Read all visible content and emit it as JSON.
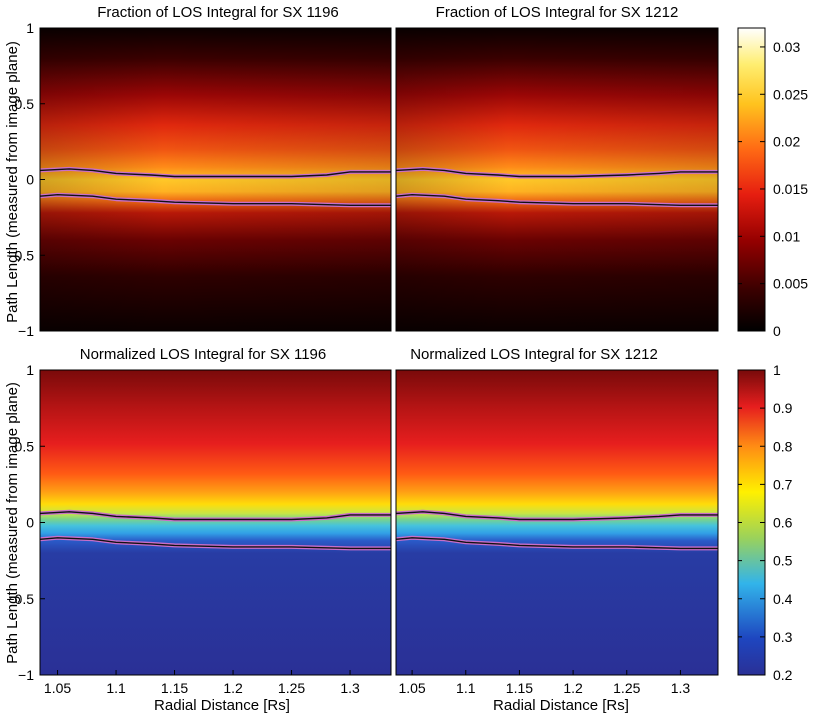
{
  "chart_data": [
    {
      "type": "heatmap",
      "title": "Fraction of LOS Integral for SX 1196",
      "xlabel": "",
      "ylabel": "Path Length (measured from image plane)",
      "xlim": [
        1.035,
        1.335
      ],
      "ylim": [
        -1,
        1
      ],
      "x_ticks": [],
      "y_ticks": [
        "1",
        "0.5",
        "0",
        "−0.5",
        "−1"
      ],
      "colormap": "hot",
      "upper_contour": [
        [
          1.035,
          0.06
        ],
        [
          1.06,
          0.07
        ],
        [
          1.08,
          0.06
        ],
        [
          1.1,
          0.04
        ],
        [
          1.13,
          0.03
        ],
        [
          1.15,
          0.02
        ],
        [
          1.2,
          0.02
        ],
        [
          1.25,
          0.02
        ],
        [
          1.28,
          0.03
        ],
        [
          1.3,
          0.05
        ],
        [
          1.335,
          0.05
        ]
      ],
      "lower_contour": [
        [
          1.035,
          -0.11
        ],
        [
          1.05,
          -0.1
        ],
        [
          1.08,
          -0.11
        ],
        [
          1.1,
          -0.13
        ],
        [
          1.13,
          -0.14
        ],
        [
          1.15,
          -0.15
        ],
        [
          1.2,
          -0.16
        ],
        [
          1.25,
          -0.16
        ],
        [
          1.3,
          -0.17
        ],
        [
          1.335,
          -0.17
        ]
      ]
    },
    {
      "type": "heatmap",
      "title": "Fraction of LOS Integral for SX 1212",
      "xlabel": "",
      "ylabel": "",
      "xlim": [
        1.035,
        1.335
      ],
      "ylim": [
        -1,
        1
      ],
      "x_ticks": [],
      "y_ticks": [],
      "colormap": "hot",
      "upper_contour": [
        [
          1.035,
          0.06
        ],
        [
          1.06,
          0.07
        ],
        [
          1.08,
          0.06
        ],
        [
          1.1,
          0.04
        ],
        [
          1.13,
          0.03
        ],
        [
          1.15,
          0.02
        ],
        [
          1.2,
          0.02
        ],
        [
          1.25,
          0.03
        ],
        [
          1.28,
          0.04
        ],
        [
          1.3,
          0.05
        ],
        [
          1.335,
          0.05
        ]
      ],
      "lower_contour": [
        [
          1.035,
          -0.11
        ],
        [
          1.05,
          -0.1
        ],
        [
          1.08,
          -0.11
        ],
        [
          1.1,
          -0.13
        ],
        [
          1.13,
          -0.14
        ],
        [
          1.15,
          -0.15
        ],
        [
          1.2,
          -0.16
        ],
        [
          1.25,
          -0.16
        ],
        [
          1.3,
          -0.17
        ],
        [
          1.335,
          -0.17
        ]
      ]
    },
    {
      "type": "heatmap",
      "title": "Normalized LOS Integral for SX 1196",
      "xlabel": "Radial Distance [Rs]",
      "ylabel": "Path Length (measured from image plane)",
      "xlim": [
        1.035,
        1.335
      ],
      "ylim": [
        -1,
        1
      ],
      "x_ticks": [
        "1.05",
        "1.1",
        "1.15",
        "1.2",
        "1.25",
        "1.3"
      ],
      "y_ticks": [
        "1",
        "0.5",
        "0",
        "−0.5",
        "−1"
      ],
      "colormap": "jet",
      "upper_contour": [
        [
          1.035,
          0.06
        ],
        [
          1.06,
          0.07
        ],
        [
          1.08,
          0.06
        ],
        [
          1.1,
          0.04
        ],
        [
          1.13,
          0.03
        ],
        [
          1.15,
          0.02
        ],
        [
          1.2,
          0.02
        ],
        [
          1.25,
          0.02
        ],
        [
          1.28,
          0.03
        ],
        [
          1.3,
          0.05
        ],
        [
          1.335,
          0.05
        ]
      ],
      "lower_contour": [
        [
          1.035,
          -0.11
        ],
        [
          1.05,
          -0.1
        ],
        [
          1.08,
          -0.11
        ],
        [
          1.1,
          -0.13
        ],
        [
          1.13,
          -0.14
        ],
        [
          1.15,
          -0.15
        ],
        [
          1.2,
          -0.16
        ],
        [
          1.25,
          -0.16
        ],
        [
          1.3,
          -0.17
        ],
        [
          1.335,
          -0.17
        ]
      ]
    },
    {
      "type": "heatmap",
      "title": "Normalized LOS Integral for SX 1212",
      "xlabel": "Radial Distance [Rs]",
      "ylabel": "",
      "xlim": [
        1.035,
        1.335
      ],
      "ylim": [
        -1,
        1
      ],
      "x_ticks": [
        "1.05",
        "1.1",
        "1.15",
        "1.2",
        "1.25",
        "1.3"
      ],
      "y_ticks": [],
      "colormap": "jet",
      "upper_contour": [
        [
          1.035,
          0.06
        ],
        [
          1.06,
          0.07
        ],
        [
          1.08,
          0.06
        ],
        [
          1.1,
          0.04
        ],
        [
          1.13,
          0.03
        ],
        [
          1.15,
          0.02
        ],
        [
          1.2,
          0.02
        ],
        [
          1.25,
          0.03
        ],
        [
          1.28,
          0.04
        ],
        [
          1.3,
          0.05
        ],
        [
          1.335,
          0.05
        ]
      ],
      "lower_contour": [
        [
          1.035,
          -0.11
        ],
        [
          1.05,
          -0.1
        ],
        [
          1.08,
          -0.11
        ],
        [
          1.1,
          -0.13
        ],
        [
          1.13,
          -0.14
        ],
        [
          1.15,
          -0.15
        ],
        [
          1.2,
          -0.16
        ],
        [
          1.25,
          -0.16
        ],
        [
          1.3,
          -0.17
        ],
        [
          1.335,
          -0.17
        ]
      ]
    }
  ],
  "colorbars": [
    {
      "colormap": "hot",
      "range": [
        0,
        0.032
      ],
      "ticks": [
        "0",
        "0.005",
        "0.01",
        "0.015",
        "0.02",
        "0.025",
        "0.03"
      ],
      "tick_values": [
        0,
        0.005,
        0.01,
        0.015,
        0.02,
        0.025,
        0.03
      ]
    },
    {
      "colormap": "jet",
      "range": [
        0.2,
        1
      ],
      "ticks": [
        "0.2",
        "0.3",
        "0.4",
        "0.5",
        "0.6",
        "0.7",
        "0.8",
        "0.9",
        "1"
      ],
      "tick_values": [
        0.2,
        0.3,
        0.4,
        0.5,
        0.6,
        0.7,
        0.8,
        0.9,
        1
      ]
    }
  ],
  "colors": {
    "contour_outer": "#c86ec8",
    "contour_inner": "#111111",
    "hot_colormap": [
      "#000000",
      "#5a0000",
      "#b40000",
      "#e61e10",
      "#ff6414",
      "#ffb41e",
      "#ffe650",
      "#ffffff"
    ],
    "jet_colormap": [
      "#2a3096",
      "#1e50c8",
      "#32b4ea",
      "#9bd25a",
      "#fff000",
      "#ff8c14",
      "#e61e1e",
      "#780a0a"
    ]
  }
}
